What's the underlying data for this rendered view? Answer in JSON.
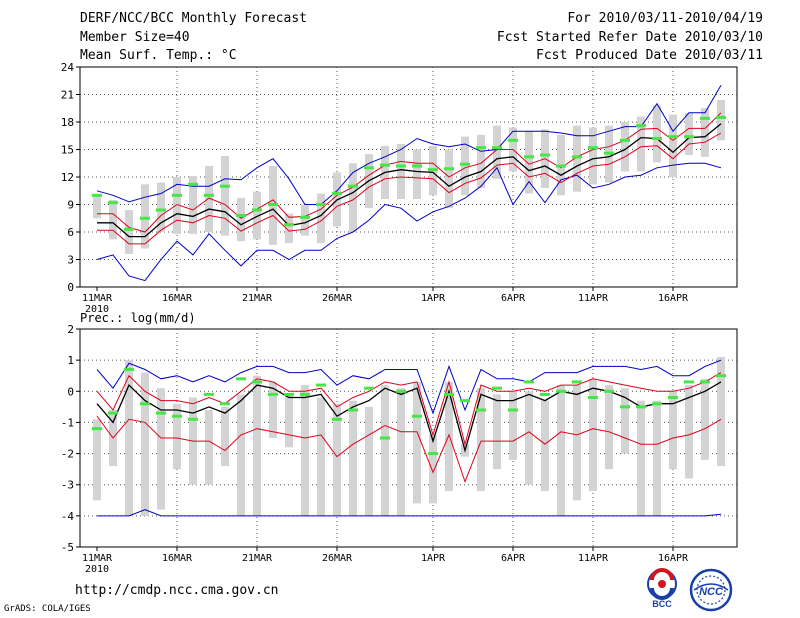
{
  "header": {
    "title": "DERF/NCC/BCC Monthly Forecast",
    "member_size": "Member Size=40",
    "variable": "Mean Surf. Temp.: °C",
    "for_range": "For 2010/03/11-2010/04/19",
    "fcst_started": "Fcst Started Refer Date 2010/03/10",
    "fcst_produced": "Fcst Produced Date 2010/03/11"
  },
  "footer": {
    "url": "http://cmdp.ncc.cma.gov.cn",
    "credit": "GrADS: COLA/IGES",
    "logo_left_text": "BCC",
    "logo_right_text": "NCC"
  },
  "colors": {
    "box": "#d3d3d3",
    "mean": "#000000",
    "inner_band": "#e0001c",
    "outer_band": "#0000c8",
    "marker": "#46e646",
    "grid": "#555555"
  },
  "chart_data": [
    {
      "type": "line",
      "title": "Mean Surf. Temp.: °C",
      "ylabel": "°C",
      "ylim": [
        0,
        24
      ],
      "yticks": [
        0,
        3,
        6,
        9,
        12,
        15,
        18,
        21,
        24
      ],
      "xtick_labels": [
        "11MAR",
        "16MAR",
        "21MAR",
        "26MAR",
        "1APR",
        "6APR",
        "11APR",
        "16APR"
      ],
      "xtick_sub": "2010",
      "dates_count": 40,
      "series": [
        {
          "name": "ensemble max",
          "values": [
            10.5,
            10,
            9.3,
            9.8,
            10.2,
            11.2,
            11,
            11,
            11.8,
            11.7,
            13,
            14,
            11.8,
            9,
            9,
            10.5,
            12.5,
            13.5,
            14.2,
            15,
            16.2,
            15.6,
            15.3,
            15.6,
            14.8,
            15,
            17,
            17,
            17,
            16.8,
            16.5,
            16.5,
            17,
            17.5,
            17.5,
            20,
            17,
            19,
            19,
            22
          ]
        },
        {
          "name": "upper band",
          "values": [
            8,
            8,
            6.5,
            6,
            7.8,
            9,
            8.4,
            9.7,
            9,
            7.5,
            8.5,
            9.5,
            7.6,
            7.7,
            8.5,
            10,
            10.9,
            12.2,
            13.3,
            13.7,
            13.5,
            13.5,
            12,
            13,
            13.5,
            15,
            15,
            13.4,
            14,
            13,
            14.2,
            15,
            15.3,
            16,
            17.2,
            17.3,
            16,
            17.3,
            17.3,
            19
          ]
        },
        {
          "name": "ensemble mean",
          "values": [
            7,
            7,
            5.5,
            5.5,
            7,
            8,
            7.7,
            8.5,
            8.2,
            6.8,
            7.7,
            8.5,
            6.7,
            7,
            7.8,
            9.5,
            10.3,
            11.6,
            12.5,
            12.8,
            12.6,
            12.5,
            11,
            12,
            12.6,
            14,
            14.2,
            12.7,
            13.2,
            12.2,
            13.2,
            14,
            14.2,
            15,
            16.3,
            16.2,
            14.7,
            16.3,
            16.4,
            17.8
          ]
        },
        {
          "name": "lower band",
          "values": [
            6.2,
            6.2,
            4.7,
            4.7,
            6.2,
            7.3,
            7,
            7.8,
            7.5,
            6.1,
            7,
            7.8,
            6.1,
            6.3,
            7.2,
            8.8,
            9.5,
            10.9,
            11.8,
            12,
            11.9,
            11.8,
            10.3,
            11.3,
            11.9,
            13.3,
            13.5,
            12,
            12.4,
            11.4,
            12.4,
            13.2,
            13.4,
            14.2,
            15.3,
            15.4,
            14,
            15.6,
            15.8,
            16.8
          ]
        },
        {
          "name": "ensemble min",
          "values": [
            3,
            3.5,
            1.2,
            0.7,
            3,
            5,
            3.5,
            5.8,
            4,
            2.3,
            4,
            4,
            3,
            4,
            4,
            5.3,
            6,
            7.3,
            9,
            8.6,
            7.2,
            8.2,
            8.8,
            9.7,
            11,
            13,
            9,
            11.5,
            9.2,
            11.7,
            12.2,
            10.8,
            11.2,
            12,
            12.2,
            13,
            13.3,
            13.5,
            13.5,
            13
          ]
        },
        {
          "name": "box top",
          "values": [
            10,
            9.5,
            8.4,
            11.2,
            11.4,
            12,
            12.1,
            13.2,
            14.3,
            9.7,
            10.4,
            13.2,
            8,
            9,
            10.2,
            12.5,
            13.5,
            14.5,
            15.4,
            15.6,
            15,
            15.4,
            15,
            16.4,
            16.6,
            17.6,
            17.4,
            17,
            17.2,
            16.6,
            17.6,
            17.4,
            17.6,
            18,
            18.6,
            19.8,
            18.8,
            19,
            19.5,
            20.4
          ]
        },
        {
          "name": "box bottom",
          "values": [
            7.5,
            5.2,
            3.6,
            4.2,
            6,
            5.8,
            5.8,
            6,
            5.6,
            5,
            5.2,
            4.6,
            4.8,
            5.6,
            4.8,
            6.6,
            6,
            8.6,
            9.6,
            9.6,
            9.6,
            10,
            8.6,
            10,
            10.8,
            11.8,
            12.6,
            10.2,
            10.8,
            10,
            10.4,
            11.2,
            11.4,
            12.6,
            12.6,
            13.6,
            12,
            14.4,
            14.2,
            16
          ]
        },
        {
          "name": "observed/climate marker",
          "values": [
            10,
            9.2,
            6.3,
            7.5,
            8.4,
            10,
            11.2,
            10,
            11,
            7.8,
            8.4,
            9,
            6.8,
            7.6,
            9,
            10.2,
            11,
            13,
            13.3,
            13.2,
            13.2,
            12.8,
            12.9,
            13.4,
            15.2,
            15.2,
            16,
            14.2,
            14.4,
            13.2,
            14.2,
            15.2,
            14.6,
            16,
            17.6,
            16.2,
            16.4,
            16.4,
            18.4,
            18.5
          ]
        }
      ]
    },
    {
      "type": "line",
      "title": "Prec.: log(mm/d)",
      "ylabel": "log(mm/d)",
      "ylim": [
        -5,
        2
      ],
      "yticks": [
        -5,
        -4,
        -3,
        -2,
        -1,
        0,
        1,
        2
      ],
      "xtick_labels": [
        "11MAR",
        "16MAR",
        "21MAR",
        "26MAR",
        "1APR",
        "6APR",
        "11APR",
        "16APR"
      ],
      "xtick_sub": "2010",
      "dates_count": 40,
      "series": [
        {
          "name": "ensemble max",
          "values": [
            0.7,
            0.1,
            0.9,
            0.7,
            0.4,
            0.5,
            0.3,
            0.5,
            0.3,
            0.6,
            0.8,
            0.8,
            0.6,
            0.6,
            0.7,
            0.2,
            0.5,
            0.4,
            0.7,
            0.7,
            0.7,
            -0.7,
            0.8,
            -0.6,
            0.7,
            0.4,
            0.4,
            0.3,
            0.6,
            0.6,
            0.6,
            0.8,
            0.8,
            0.8,
            0.7,
            0.8,
            0.5,
            0.5,
            0.8,
            1.0
          ]
        },
        {
          "name": "upper band",
          "values": [
            0,
            -0.6,
            0.5,
            0,
            -0.3,
            -0.3,
            -0.4,
            -0.2,
            -0.4,
            0,
            0.4,
            0.3,
            0,
            0,
            0.1,
            -0.5,
            -0.2,
            0,
            0.3,
            0.2,
            0.3,
            -1.4,
            0.3,
            -1.7,
            0.2,
            0,
            0,
            0.1,
            0,
            0.2,
            0.2,
            0.4,
            0.3,
            0.2,
            0.1,
            0,
            0,
            0.1,
            0.3,
            0.6
          ]
        },
        {
          "name": "ensemble mean",
          "values": [
            -0.4,
            -1.0,
            0.2,
            -0.3,
            -0.6,
            -0.6,
            -0.7,
            -0.5,
            -0.7,
            -0.3,
            0.2,
            0.1,
            -0.2,
            -0.2,
            -0.1,
            -0.8,
            -0.5,
            -0.3,
            0.1,
            -0.1,
            0.1,
            -1.6,
            0,
            -1.9,
            -0.1,
            -0.3,
            -0.3,
            -0.1,
            -0.3,
            0,
            -0.1,
            0.1,
            0,
            -0.2,
            -0.5,
            -0.4,
            -0.4,
            -0.2,
            0,
            0.3
          ]
        },
        {
          "name": "lower band",
          "values": [
            -0.8,
            -1.5,
            -0.9,
            -1.0,
            -1.5,
            -1.5,
            -1.6,
            -1.6,
            -1.9,
            -1.4,
            -1.2,
            -1.3,
            -1.4,
            -1.5,
            -1.4,
            -2.1,
            -1.7,
            -1.4,
            -1.1,
            -1.3,
            -1.3,
            -2.6,
            -1.4,
            -2.9,
            -1.6,
            -1.6,
            -1.6,
            -1.3,
            -1.7,
            -1.3,
            -1.4,
            -1.2,
            -1.3,
            -1.5,
            -1.7,
            -1.7,
            -1.5,
            -1.4,
            -1.2,
            -0.9
          ]
        },
        {
          "name": "ensemble min",
          "values": [
            -4,
            -4,
            -4,
            -3.8,
            -4,
            -4,
            -4,
            -4,
            -4,
            -4,
            -4,
            -4,
            -4,
            -4,
            -4,
            -4,
            -4,
            -4,
            -4,
            -4,
            -4,
            -4,
            -4,
            -4,
            -4,
            -4,
            -4,
            -4,
            -4,
            -4,
            -4,
            -4,
            -4,
            -4,
            -4,
            -4,
            -4,
            -4,
            -4,
            -3.95
          ]
        },
        {
          "name": "box top",
          "values": [
            -0.9,
            -0.6,
            1.0,
            0.6,
            0.1,
            -0.4,
            -0.2,
            -0.6,
            -0.5,
            -0.1,
            0.5,
            0.3,
            -0.1,
            0.2,
            -0.2,
            -0.4,
            -0.3,
            -0.5,
            0.2,
            0.1,
            0.3,
            -1.4,
            0.3,
            -1.7,
            0.1,
            -0.1,
            0,
            0,
            -0.3,
            0.2,
            0.2,
            0.4,
            0.2,
            0.1,
            -0.3,
            -0.3,
            0,
            0.2,
            0.4,
            1.1
          ]
        },
        {
          "name": "box bottom",
          "values": [
            -3.5,
            -2.4,
            -4,
            -4,
            -3.8,
            -2.5,
            -3,
            -3,
            -2.4,
            -4,
            -4,
            -1.5,
            -1.8,
            -4,
            -4,
            -4,
            -4,
            -4,
            -4,
            -4,
            -3.6,
            -3.6,
            -3.2,
            -2.1,
            -3.2,
            -2.5,
            -2.2,
            -3,
            -3.2,
            -4,
            -3.5,
            -3.2,
            -2.5,
            -2,
            -4,
            -4,
            -2.5,
            -2.8,
            -2.2,
            -2.4
          ]
        },
        {
          "name": "observed/climate marker",
          "values": [
            -1.2,
            -0.7,
            0.7,
            -0.4,
            -0.7,
            -0.8,
            -0.9,
            -0.1,
            -0.4,
            0.4,
            0.3,
            -0.1,
            -0.1,
            -0.1,
            0.2,
            -0.9,
            -0.6,
            0.1,
            -1.5,
            0,
            -0.8,
            -2,
            -0.1,
            -0.3,
            -0.6,
            0.1,
            -0.6,
            0.3,
            -0.1,
            0,
            0.3,
            -0.2,
            0,
            -0.5,
            -0.5,
            -0.4,
            -0.2,
            0.3,
            0.3,
            0.5
          ]
        }
      ]
    }
  ]
}
